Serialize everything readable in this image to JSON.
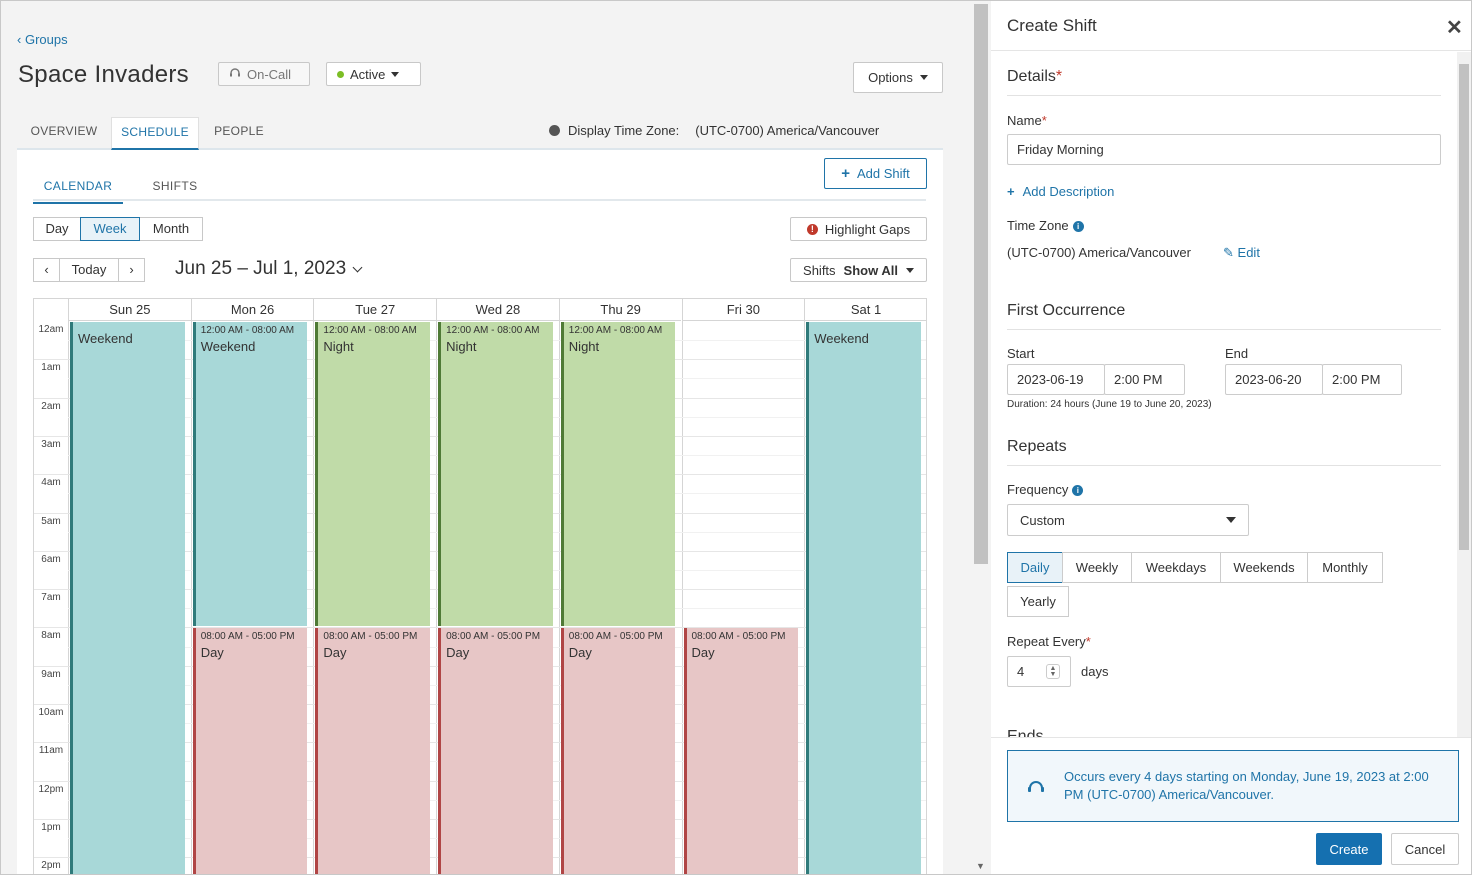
{
  "left": {
    "breadcrumb": "Groups",
    "group_title": "Space Invaders",
    "oncall_label": "On-Call",
    "status_label": "Active",
    "options_label": "Options",
    "tabs": [
      {
        "label": "OVERVIEW"
      },
      {
        "label": "SCHEDULE"
      },
      {
        "label": "PEOPLE"
      }
    ],
    "timezone_label": "Display Time Zone:",
    "timezone_value": "(UTC-0700) America/Vancouver",
    "subtabs": [
      {
        "label": "CALENDAR"
      },
      {
        "label": "SHIFTS"
      }
    ],
    "add_shift_label": "Add Shift",
    "view_modes": [
      "Day",
      "Week",
      "Month"
    ],
    "highlight_gaps_label": "Highlight Gaps",
    "today_label": "Today",
    "prev_glyph": "‹",
    "next_glyph": "›",
    "date_range": "Jun 25 – Jul 1, 2023",
    "shifts_filter_label": "Shifts",
    "shifts_filter_value": "Show All"
  },
  "calendar": {
    "days": [
      "Sun 25",
      "Mon 26",
      "Tue 27",
      "Wed 28",
      "Thu 29",
      "Fri 30",
      "Sat 1"
    ],
    "hours": [
      "12am",
      "1am",
      "2am",
      "3am",
      "4am",
      "5am",
      "6am",
      "7am",
      "8am",
      "9am",
      "10am",
      "11am",
      "12pm",
      "1pm",
      "2pm"
    ],
    "events": [
      {
        "day": 0,
        "start": 0,
        "end": 15,
        "time": "",
        "name": "Weekend",
        "color": "teal"
      },
      {
        "day": 1,
        "start": 0,
        "end": 8,
        "time": "12:00 AM - 08:00 AM",
        "name": "Weekend",
        "color": "teal"
      },
      {
        "day": 1,
        "start": 8,
        "end": 15,
        "time": "08:00 AM - 05:00 PM",
        "name": "Day",
        "color": "pink"
      },
      {
        "day": 2,
        "start": 0,
        "end": 8,
        "time": "12:00 AM - 08:00 AM",
        "name": "Night",
        "color": "green"
      },
      {
        "day": 2,
        "start": 8,
        "end": 15,
        "time": "08:00 AM - 05:00 PM",
        "name": "Day",
        "color": "pink"
      },
      {
        "day": 3,
        "start": 0,
        "end": 8,
        "time": "12:00 AM - 08:00 AM",
        "name": "Night",
        "color": "green"
      },
      {
        "day": 3,
        "start": 8,
        "end": 15,
        "time": "08:00 AM - 05:00 PM",
        "name": "Day",
        "color": "pink"
      },
      {
        "day": 4,
        "start": 0,
        "end": 8,
        "time": "12:00 AM - 08:00 AM",
        "name": "Night",
        "color": "green"
      },
      {
        "day": 4,
        "start": 8,
        "end": 15,
        "time": "08:00 AM - 05:00 PM",
        "name": "Day",
        "color": "pink"
      },
      {
        "day": 5,
        "start": 8,
        "end": 15,
        "time": "08:00 AM - 05:00 PM",
        "name": "Day",
        "color": "pink"
      },
      {
        "day": 6,
        "start": 0,
        "end": 15,
        "time": "",
        "name": "Weekend",
        "color": "teal"
      }
    ]
  },
  "drawer": {
    "title": "Create Shift",
    "details_heading": "Details",
    "name_label": "Name",
    "name_value": "Friday Morning",
    "add_description_label": "Add Description",
    "timezone_label": "Time Zone",
    "timezone_value": "(UTC-0700) America/Vancouver",
    "edit_label": "Edit",
    "first_occurrence_heading": "First Occurrence",
    "start_label": "Start",
    "start_date": "2023-06-19",
    "start_time": "2:00 PM",
    "end_label": "End",
    "end_date": "2023-06-20",
    "end_time": "2:00 PM",
    "duration_text": "Duration: 24 hours (June 19 to June 20, 2023)",
    "repeats_heading": "Repeats",
    "frequency_label": "Frequency",
    "frequency_value": "Custom",
    "repeat_options": [
      "Daily",
      "Weekly",
      "Weekdays",
      "Weekends",
      "Monthly",
      "Yearly"
    ],
    "repeat_selected": "Daily",
    "repeat_every_label": "Repeat Every",
    "repeat_every_value": "4",
    "repeat_unit": "days",
    "ends_heading": "Ends",
    "summary_text": "Occurs every 4 days starting on Monday, June 19, 2023 at 2:00 PM (UTC-0700) America/Vancouver.",
    "create_label": "Create",
    "cancel_label": "Cancel"
  },
  "colors": {
    "accent": "#1f74a8",
    "teal": "#a8d8d8",
    "green": "#c0dba8",
    "pink": "#e7c6c6",
    "required": "#c0392b",
    "active_dot": "#7cbe25"
  }
}
